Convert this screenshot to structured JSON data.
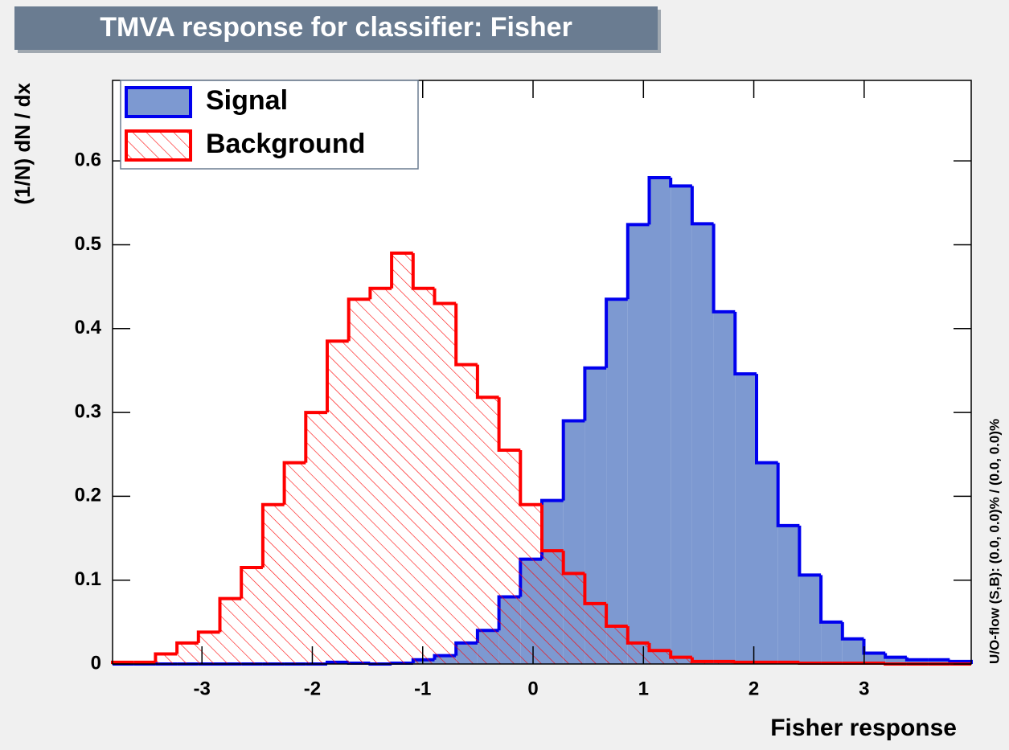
{
  "chart_data": {
    "type": "histogram",
    "title": "TMVA response for classifier: Fisher",
    "x_label": "Fisher response",
    "y_label": "(1/N) dN / dx",
    "annotation": "U/O-flow (S,B): (0.0, 0.0)% / (0.0, 0.0)%",
    "bins": [
      -3.81,
      -3.6155,
      -3.421,
      -3.2265,
      -3.032,
      -2.8375,
      -2.643,
      -2.4485,
      -2.254,
      -2.0595,
      -1.865,
      -1.6705,
      -1.476,
      -1.2815,
      -1.087,
      -0.8925,
      -0.698,
      -0.5035,
      -0.309,
      -0.1145,
      0.08,
      0.2745,
      0.469,
      0.6635,
      0.858,
      1.0525,
      1.247,
      1.4415,
      1.636,
      1.8305,
      2.025,
      2.2195,
      2.414,
      2.6085,
      2.803,
      2.9975,
      3.192,
      3.3865,
      3.581,
      3.7755,
      3.97
    ],
    "series": [
      {
        "name": "Signal",
        "color": "#0000ee",
        "fill": "#7d99d1",
        "hatch": false,
        "values": [
          0,
          0,
          0,
          0,
          0,
          0,
          0,
          0,
          0,
          0,
          0.002,
          0.001,
          0,
          0.001,
          0.005,
          0.01,
          0.025,
          0.04,
          0.08,
          0.125,
          0.195,
          0.29,
          0.353,
          0.435,
          0.524,
          0.58,
          0.57,
          0.525,
          0.42,
          0.346,
          0.24,
          0.165,
          0.106,
          0.05,
          0.03,
          0.013,
          0.008,
          0.005,
          0.005,
          0.003
        ]
      },
      {
        "name": "Background",
        "color": "#ff0000",
        "fill": "#ff0000",
        "hatch": true,
        "values": [
          0.002,
          0.002,
          0.012,
          0.025,
          0.038,
          0.078,
          0.115,
          0.19,
          0.24,
          0.3,
          0.385,
          0.435,
          0.448,
          0.49,
          0.448,
          0.43,
          0.357,
          0.318,
          0.255,
          0.19,
          0.135,
          0.108,
          0.072,
          0.045,
          0.025,
          0.016,
          0.008,
          0.003,
          0.003,
          0.002,
          0.002,
          0.002,
          0.001,
          0.001,
          0.001,
          0.001,
          0,
          0,
          0,
          0
        ]
      }
    ],
    "xlim": [
      -3.81,
      3.97
    ],
    "xticks": [
      -3,
      -2,
      -1,
      0,
      1,
      2,
      3
    ],
    "ylim": [
      0,
      0.696
    ],
    "yticks": [
      0,
      0.1,
      0.2,
      0.3,
      0.4,
      0.5,
      0.6
    ],
    "legend": "upper left"
  }
}
